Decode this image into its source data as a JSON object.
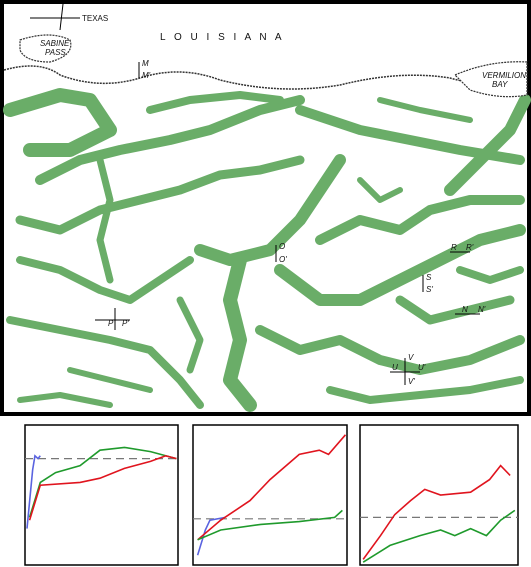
{
  "map": {
    "labels": {
      "texas": "TEXAS",
      "louisiana": "L O U I S I A N A",
      "sabine_1": "SABINE",
      "sabine_2": "PASS",
      "vermilion_1": "VERMILION",
      "vermilion_2": "BAY",
      "m": "M",
      "m2": "M'",
      "o": "O",
      "o2": "O'",
      "r": "R",
      "r2": "R'",
      "s": "S",
      "s2": "S'",
      "n": "N",
      "n2": "N'",
      "u": "U",
      "u2": "U'",
      "v": "V",
      "v2": "V'",
      "p": "P",
      "p2": "P'"
    }
  },
  "panels": [
    {
      "type": "line",
      "xlim": [
        0,
        100
      ],
      "ylim": [
        0,
        100
      ],
      "reference": 76,
      "series": [
        {
          "color": "#5a63e0",
          "x": [
            1.3,
            5,
            6.5,
            8.5,
            10
          ],
          "values": [
            26,
            68,
            78,
            76,
            78
          ]
        },
        {
          "color": "#1f9a2c",
          "x": [
            3,
            10,
            20,
            36,
            49,
            65,
            82,
            99
          ],
          "values": [
            34,
            59,
            66,
            71,
            82,
            84,
            81,
            76
          ]
        },
        {
          "color": "#e0141e",
          "x": [
            3,
            10,
            36,
            49,
            65,
            82,
            92,
            99
          ],
          "values": [
            32,
            57,
            59,
            62,
            69,
            74,
            78,
            76
          ]
        }
      ]
    },
    {
      "type": "line",
      "xlim": [
        0,
        100
      ],
      "ylim": [
        0,
        100
      ],
      "reference": 33,
      "series": [
        {
          "color": "#5a63e0",
          "x": [
            3,
            8,
            11,
            21
          ],
          "values": [
            7,
            25,
            32,
            34
          ]
        },
        {
          "color": "#e0141e",
          "x": [
            3,
            18,
            37,
            50,
            69,
            82,
            88,
            99
          ],
          "values": [
            18,
            32,
            46,
            61,
            79,
            82,
            79,
            93
          ]
        },
        {
          "color": "#1f9a2c",
          "x": [
            3,
            18,
            44,
            69,
            92,
            97
          ],
          "values": [
            18,
            25,
            29,
            31,
            34,
            39
          ]
        }
      ]
    },
    {
      "type": "line",
      "xlim": [
        0,
        100
      ],
      "ylim": [
        0,
        100
      ],
      "reference": 34,
      "series": [
        {
          "color": "#e0141e",
          "x": [
            2,
            13,
            22,
            32,
            41,
            51,
            70,
            82,
            89,
            95
          ],
          "values": [
            4,
            21,
            36,
            46,
            54,
            50,
            52,
            61,
            71,
            64
          ]
        },
        {
          "color": "#1f9a2c",
          "x": [
            2,
            19,
            38,
            51,
            60,
            70,
            80,
            89,
            98
          ],
          "values": [
            2,
            14,
            21,
            25,
            21,
            26,
            21,
            32,
            39
          ]
        }
      ]
    }
  ]
}
